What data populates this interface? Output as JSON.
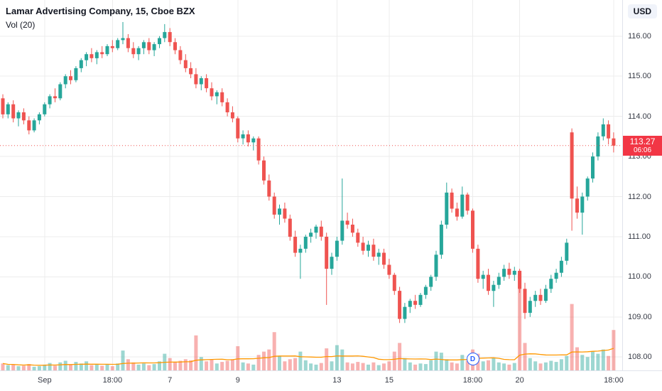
{
  "header": {
    "symbol_title": "Lamar Advertising Company, 15, Cboe BZX",
    "indicator_label": "Vol (20)"
  },
  "price_scale": {
    "currency_label": "USD",
    "last_price_label": "113.27",
    "countdown_label": "06:06"
  },
  "session_marker": {
    "label": "D",
    "index": 90
  },
  "chart_data": {
    "type": "candlestick",
    "title": "Lamar Advertising Company, 15, Cboe BZX",
    "symbol": "Lamar Advertising Company",
    "interval": "15",
    "exchange": "Cboe BZX",
    "last_price": 113.27,
    "ylim": [
      107.65,
      116.9
    ],
    "grid": true,
    "price_axis": {
      "values": [
        116,
        115,
        114,
        113,
        112,
        111,
        110,
        109,
        108
      ]
    },
    "time_axis": {
      "ticks": [
        {
          "label": "Sep",
          "index": 8
        },
        {
          "label": "18:00",
          "index": 21
        },
        {
          "label": "7",
          "index": 32
        },
        {
          "label": "9",
          "index": 45
        },
        {
          "label": "13",
          "index": 64
        },
        {
          "label": "15",
          "index": 74
        },
        {
          "label": "18:00",
          "index": 90
        },
        {
          "label": "20",
          "index": 99
        },
        {
          "label": "18:00",
          "index": 117
        }
      ]
    },
    "candles": [
      [
        114.45,
        114.55,
        113.95,
        114.05
      ],
      [
        114.05,
        114.35,
        113.95,
        114.3
      ],
      [
        114.3,
        114.4,
        113.85,
        113.95
      ],
      [
        113.95,
        114.15,
        113.75,
        114.1
      ],
      [
        114.1,
        114.2,
        113.8,
        113.9
      ],
      [
        113.9,
        114.0,
        113.55,
        113.65
      ],
      [
        113.65,
        113.95,
        113.6,
        113.9
      ],
      [
        113.9,
        114.1,
        113.8,
        114.05
      ],
      [
        114.05,
        114.35,
        114.0,
        114.3
      ],
      [
        114.3,
        114.55,
        114.2,
        114.5
      ],
      [
        114.5,
        114.7,
        114.35,
        114.45
      ],
      [
        114.45,
        114.85,
        114.4,
        114.8
      ],
      [
        114.8,
        115.05,
        114.7,
        115.0
      ],
      [
        115.0,
        115.15,
        114.8,
        114.9
      ],
      [
        114.9,
        115.25,
        114.85,
        115.2
      ],
      [
        115.2,
        115.45,
        115.1,
        115.4
      ],
      [
        115.4,
        115.6,
        115.25,
        115.55
      ],
      [
        115.55,
        115.7,
        115.35,
        115.45
      ],
      [
        115.45,
        115.65,
        115.3,
        115.6
      ],
      [
        115.6,
        115.75,
        115.45,
        115.55
      ],
      [
        115.55,
        115.8,
        115.5,
        115.75
      ],
      [
        115.75,
        115.9,
        115.6,
        115.7
      ],
      [
        115.7,
        115.95,
        115.65,
        115.9
      ],
      [
        115.9,
        116.35,
        115.8,
        115.95
      ],
      [
        115.95,
        116.05,
        115.6,
        115.7
      ],
      [
        115.7,
        115.85,
        115.45,
        115.55
      ],
      [
        115.55,
        115.75,
        115.4,
        115.7
      ],
      [
        115.7,
        115.9,
        115.55,
        115.85
      ],
      [
        115.85,
        115.95,
        115.55,
        115.65
      ],
      [
        115.65,
        115.85,
        115.5,
        115.8
      ],
      [
        115.8,
        116.0,
        115.7,
        115.95
      ],
      [
        115.95,
        116.3,
        115.85,
        116.1
      ],
      [
        116.1,
        116.2,
        115.75,
        115.85
      ],
      [
        115.85,
        115.95,
        115.55,
        115.65
      ],
      [
        115.65,
        115.75,
        115.3,
        115.4
      ],
      [
        115.4,
        115.55,
        115.1,
        115.2
      ],
      [
        115.2,
        115.35,
        114.95,
        115.05
      ],
      [
        115.05,
        115.2,
        114.7,
        114.8
      ],
      [
        114.8,
        115.0,
        114.65,
        114.95
      ],
      [
        114.95,
        115.05,
        114.6,
        114.7
      ],
      [
        114.7,
        114.85,
        114.4,
        114.5
      ],
      [
        114.5,
        114.65,
        114.3,
        114.6
      ],
      [
        114.6,
        114.7,
        114.25,
        114.35
      ],
      [
        114.35,
        114.45,
        114.0,
        114.1
      ],
      [
        114.1,
        114.25,
        113.85,
        113.95
      ],
      [
        113.95,
        114.0,
        113.35,
        113.45
      ],
      [
        113.45,
        113.65,
        113.3,
        113.55
      ],
      [
        113.55,
        113.65,
        113.25,
        113.35
      ],
      [
        113.35,
        113.5,
        113.15,
        113.45
      ],
      [
        113.45,
        113.5,
        112.8,
        112.9
      ],
      [
        112.9,
        113.0,
        112.3,
        112.4
      ],
      [
        112.4,
        112.55,
        111.9,
        112.0
      ],
      [
        112.0,
        112.1,
        111.45,
        111.55
      ],
      [
        111.55,
        111.8,
        111.3,
        111.7
      ],
      [
        111.7,
        111.85,
        111.35,
        111.45
      ],
      [
        111.45,
        111.55,
        110.9,
        111.0
      ],
      [
        111.0,
        111.15,
        110.5,
        110.6
      ],
      [
        110.6,
        110.8,
        109.95,
        110.7
      ],
      [
        110.7,
        111.05,
        110.6,
        111.0
      ],
      [
        111.0,
        111.2,
        110.85,
        111.1
      ],
      [
        111.1,
        111.3,
        110.95,
        111.25
      ],
      [
        111.25,
        111.4,
        110.9,
        111.0
      ],
      [
        111.0,
        111.1,
        109.3,
        110.2
      ],
      [
        110.2,
        110.6,
        110.05,
        110.5
      ],
      [
        110.5,
        111.0,
        110.4,
        110.9
      ],
      [
        110.9,
        112.45,
        110.8,
        111.4
      ],
      [
        111.4,
        111.6,
        111.2,
        111.3
      ],
      [
        111.3,
        111.45,
        111.0,
        111.1
      ],
      [
        111.1,
        111.2,
        110.75,
        110.85
      ],
      [
        110.85,
        111.0,
        110.55,
        110.65
      ],
      [
        110.65,
        110.9,
        110.5,
        110.8
      ],
      [
        110.8,
        110.95,
        110.4,
        110.5
      ],
      [
        110.5,
        110.7,
        110.3,
        110.6
      ],
      [
        110.6,
        110.7,
        110.2,
        110.3
      ],
      [
        110.3,
        110.45,
        109.95,
        110.05
      ],
      [
        110.05,
        110.1,
        109.55,
        109.65
      ],
      [
        109.65,
        109.75,
        108.85,
        108.95
      ],
      [
        108.95,
        109.35,
        108.85,
        109.25
      ],
      [
        109.25,
        109.45,
        109.1,
        109.4
      ],
      [
        109.4,
        109.55,
        109.2,
        109.3
      ],
      [
        109.3,
        109.6,
        109.25,
        109.55
      ],
      [
        109.55,
        109.8,
        109.45,
        109.75
      ],
      [
        109.75,
        110.05,
        109.65,
        110.0
      ],
      [
        110.0,
        110.65,
        109.9,
        110.55
      ],
      [
        110.55,
        111.4,
        110.45,
        111.3
      ],
      [
        111.3,
        112.35,
        111.2,
        112.1
      ],
      [
        112.1,
        112.2,
        111.6,
        111.7
      ],
      [
        111.7,
        111.85,
        111.4,
        111.5
      ],
      [
        111.5,
        112.25,
        111.45,
        112.05
      ],
      [
        112.05,
        112.1,
        111.55,
        111.65
      ],
      [
        111.65,
        111.7,
        110.6,
        110.7
      ],
      [
        110.7,
        110.8,
        109.85,
        109.95
      ],
      [
        109.95,
        110.15,
        109.7,
        110.05
      ],
      [
        110.05,
        110.2,
        109.55,
        109.65
      ],
      [
        109.65,
        109.9,
        109.25,
        109.8
      ],
      [
        109.8,
        110.1,
        109.7,
        110.0
      ],
      [
        110.0,
        110.3,
        109.9,
        110.2
      ],
      [
        110.2,
        110.35,
        109.95,
        110.05
      ],
      [
        110.05,
        110.25,
        109.9,
        110.15
      ],
      [
        110.15,
        110.2,
        109.6,
        109.7
      ],
      [
        109.7,
        109.85,
        108.95,
        109.1
      ],
      [
        109.1,
        109.5,
        109.0,
        109.4
      ],
      [
        109.4,
        109.65,
        109.25,
        109.55
      ],
      [
        109.55,
        109.7,
        109.3,
        109.4
      ],
      [
        109.4,
        109.8,
        109.35,
        109.7
      ],
      [
        109.7,
        110.05,
        109.6,
        109.95
      ],
      [
        109.95,
        110.2,
        109.85,
        110.1
      ],
      [
        110.1,
        110.5,
        110.0,
        110.4
      ],
      [
        110.4,
        110.95,
        110.3,
        110.85
      ],
      [
        113.6,
        113.7,
        111.15,
        111.95
      ],
      [
        111.95,
        112.25,
        111.45,
        111.6
      ],
      [
        111.6,
        112.1,
        111.05,
        112.0
      ],
      [
        112.0,
        112.5,
        111.9,
        112.45
      ],
      [
        112.45,
        113.1,
        112.35,
        113.0
      ],
      [
        113.0,
        113.6,
        112.9,
        113.5
      ],
      [
        113.5,
        113.95,
        113.4,
        113.8
      ],
      [
        113.8,
        113.9,
        113.3,
        113.45
      ],
      [
        113.45,
        113.6,
        113.1,
        113.27
      ]
    ],
    "volumes": [
      70,
      55,
      60,
      45,
      50,
      65,
      40,
      45,
      60,
      75,
      50,
      80,
      95,
      60,
      85,
      70,
      90,
      55,
      65,
      50,
      60,
      45,
      70,
      190,
      110,
      80,
      60,
      70,
      55,
      65,
      90,
      160,
      120,
      85,
      95,
      110,
      100,
      330,
      130,
      90,
      105,
      70,
      85,
      95,
      110,
      230,
      80,
      70,
      60,
      150,
      180,
      200,
      360,
      140,
      90,
      110,
      120,
      180,
      100,
      70,
      60,
      75,
      210,
      90,
      240,
      200,
      80,
      70,
      85,
      75,
      60,
      80,
      55,
      70,
      90,
      180,
      260,
      120,
      80,
      60,
      70,
      65,
      100,
      180,
      170,
      110,
      80,
      70,
      150,
      95,
      200,
      160,
      90,
      100,
      120,
      80,
      70,
      60,
      75,
      900,
      260,
      120,
      90,
      70,
      80,
      95,
      85,
      110,
      140,
      620,
      220,
      150,
      130,
      180,
      160,
      200,
      140,
      380
    ],
    "colors": {
      "up": "#26a69a",
      "down": "#ef5350",
      "vol_up": "rgba(38,166,154,0.45)",
      "vol_down": "rgba(239,83,80,0.45)",
      "vol_ma": "#ff9800",
      "grid": "#ececec",
      "badge": "#f23645"
    },
    "legend_position": "top-left"
  }
}
